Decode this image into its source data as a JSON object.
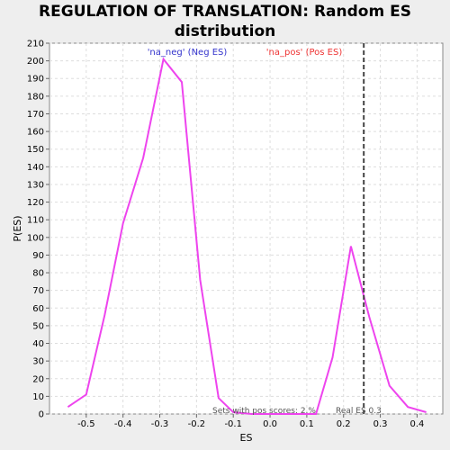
{
  "chart_data": {
    "type": "line",
    "title": "REGULATION OF TRANSLATION: Random ES distribution",
    "xlabel": "ES",
    "ylabel": "P(ES)",
    "xlim": [
      -0.6,
      0.47
    ],
    "ylim": [
      0,
      210
    ],
    "xticks": [
      "-0.5",
      "-0.4",
      "-0.3",
      "-0.2",
      "-0.1",
      "0.0",
      "0.1",
      "0.2",
      "0.3",
      "0.4"
    ],
    "xtick_values": [
      -0.5,
      -0.4,
      -0.3,
      -0.2,
      -0.1,
      0.0,
      0.1,
      0.2,
      0.3,
      0.4
    ],
    "yticks": [
      "0",
      "10",
      "20",
      "30",
      "40",
      "50",
      "60",
      "70",
      "80",
      "90",
      "100",
      "110",
      "120",
      "130",
      "140",
      "150",
      "160",
      "170",
      "180",
      "190",
      "200",
      "210"
    ],
    "ytick_values": [
      0,
      10,
      20,
      30,
      40,
      50,
      60,
      70,
      80,
      90,
      100,
      110,
      120,
      130,
      140,
      150,
      160,
      170,
      180,
      190,
      200,
      210
    ],
    "grid": true,
    "line_color": "#ee44ee",
    "series": [
      {
        "x": [
          -0.55,
          -0.5,
          -0.45,
          -0.4,
          -0.345,
          -0.29,
          -0.24,
          -0.19,
          -0.14,
          -0.1,
          -0.05,
          0.0,
          0.05,
          0.1,
          0.125,
          0.17,
          0.22,
          0.27,
          0.325,
          0.375,
          0.425
        ],
        "values": [
          4,
          11,
          56,
          108,
          145,
          201,
          188,
          76,
          9,
          1,
          0,
          0,
          0,
          0,
          0,
          32,
          95,
          55,
          16,
          4,
          1
        ]
      }
    ],
    "legend": [
      {
        "label": "'na_neg' (Neg ES)",
        "color": "#3333cc"
      },
      {
        "label": "'na_pos' (Pos ES)",
        "color": "#ee3333"
      }
    ],
    "real_es": {
      "value": 0.255,
      "label": "Real ES 0.3"
    },
    "annotation": "Sets with pos scores: 2.%"
  }
}
